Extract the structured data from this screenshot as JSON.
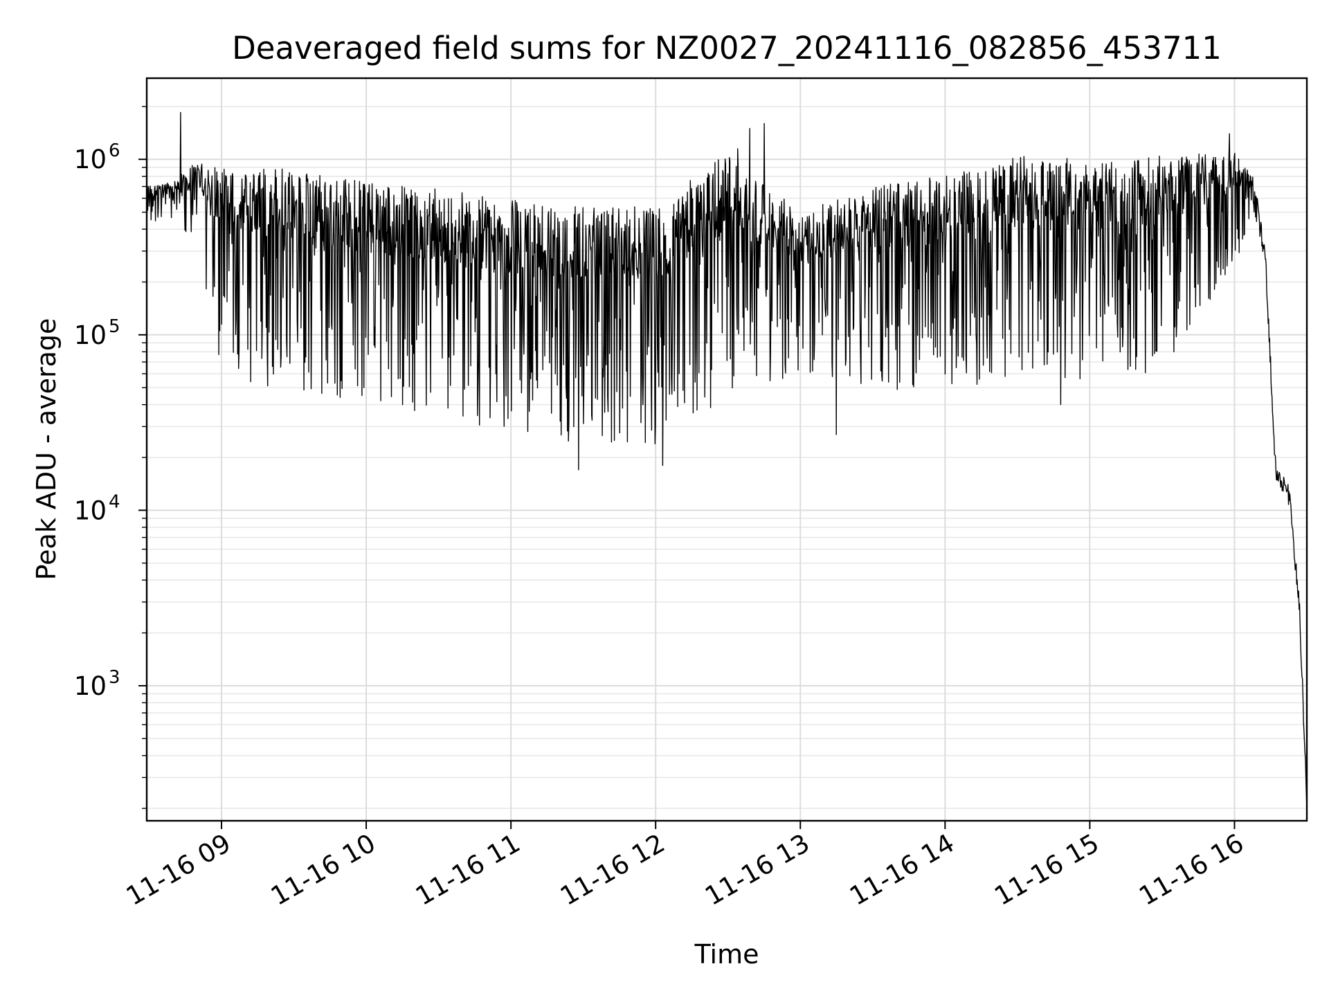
{
  "chart_data": {
    "type": "line",
    "title": "Deaveraged field sums for NZ0027_20241116_082856_453711",
    "xlabel": "Time",
    "ylabel": "Peak ADU - average",
    "yscale": "log",
    "ylim": [
      170,
      2900000
    ],
    "xlim": [
      "2024-11-16T08:29:00",
      "2024-11-16T16:30:00"
    ],
    "grid": "major and minor, light gray",
    "line_color": "#000000",
    "x_ticks": [
      {
        "value": "2024-11-16T09:00:00",
        "label": "11-16 09"
      },
      {
        "value": "2024-11-16T10:00:00",
        "label": "11-16 10"
      },
      {
        "value": "2024-11-16T11:00:00",
        "label": "11-16 11"
      },
      {
        "value": "2024-11-16T12:00:00",
        "label": "11-16 12"
      },
      {
        "value": "2024-11-16T13:00:00",
        "label": "11-16 13"
      },
      {
        "value": "2024-11-16T14:00:00",
        "label": "11-16 14"
      },
      {
        "value": "2024-11-16T15:00:00",
        "label": "11-16 15"
      },
      {
        "value": "2024-11-16T16:00:00",
        "label": "11-16 16"
      }
    ],
    "y_ticks": [
      {
        "value": 1000,
        "base": "10",
        "exp": "3"
      },
      {
        "value": 10000,
        "base": "10",
        "exp": "4"
      },
      {
        "value": 100000,
        "base": "10",
        "exp": "5"
      },
      {
        "value": 1000000,
        "base": "10",
        "exp": "6"
      }
    ],
    "series": [
      {
        "envelope": [
          {
            "time": "2024-11-16T08:29:00",
            "high": 700000,
            "low": 430000
          },
          {
            "time": "2024-11-16T08:40:00",
            "high": 750000,
            "low": 460000
          },
          {
            "time": "2024-11-16T08:50:00",
            "high": 980000,
            "low": 300000
          },
          {
            "time": "2024-11-16T09:00:00",
            "high": 900000,
            "low": 60000
          },
          {
            "time": "2024-11-16T09:30:00",
            "high": 880000,
            "low": 45000
          },
          {
            "time": "2024-11-16T10:00:00",
            "high": 750000,
            "low": 40000
          },
          {
            "time": "2024-11-16T10:30:00",
            "high": 680000,
            "low": 35000
          },
          {
            "time": "2024-11-16T11:00:00",
            "high": 600000,
            "low": 25000
          },
          {
            "time": "2024-11-16T11:30:00",
            "high": 560000,
            "low": 22000
          },
          {
            "time": "2024-11-16T12:00:00",
            "high": 540000,
            "low": 23000
          },
          {
            "time": "2024-11-16T12:30:00",
            "high": 1100000,
            "low": 45000
          },
          {
            "time": "2024-11-16T13:00:00",
            "high": 500000,
            "low": 60000
          },
          {
            "time": "2024-11-16T13:30:00",
            "high": 700000,
            "low": 50000
          },
          {
            "time": "2024-11-16T14:00:00",
            "high": 820000,
            "low": 45000
          },
          {
            "time": "2024-11-16T14:30:00",
            "high": 1050000,
            "low": 55000
          },
          {
            "time": "2024-11-16T15:00:00",
            "high": 1000000,
            "low": 55000
          },
          {
            "time": "2024-11-16T15:30:00",
            "high": 1050000,
            "low": 60000
          },
          {
            "time": "2024-11-16T16:00:00",
            "high": 1100000,
            "low": 250000
          },
          {
            "time": "2024-11-16T16:08:00",
            "high": 800000,
            "low": 450000
          },
          {
            "time": "2024-11-16T16:13:00",
            "high": 300000,
            "low": 200000
          },
          {
            "time": "2024-11-16T16:17:00",
            "high": 20000,
            "low": 12000
          },
          {
            "time": "2024-11-16T16:23:00",
            "high": 14000,
            "low": 9000
          },
          {
            "time": "2024-11-16T16:27:00",
            "high": 3000,
            "low": 2000
          },
          {
            "time": "2024-11-16T16:30:00",
            "high": 250,
            "low": 180
          }
        ],
        "spikes": [
          {
            "time": "2024-11-16T08:43:00",
            "value": 1850000
          },
          {
            "time": "2024-11-16T12:34:00",
            "value": 1150000
          },
          {
            "time": "2024-11-16T12:39:00",
            "value": 1500000
          },
          {
            "time": "2024-11-16T12:45:00",
            "value": 1600000
          },
          {
            "time": "2024-11-16T15:58:00",
            "value": 1400000
          },
          {
            "time": "2024-11-16T11:28:00",
            "value": 17000
          },
          {
            "time": "2024-11-16T12:03:00",
            "value": 18000
          },
          {
            "time": "2024-11-16T12:59:00",
            "value": 63000
          },
          {
            "time": "2024-11-16T13:15:00",
            "value": 27000
          },
          {
            "time": "2024-11-16T14:48:00",
            "value": 40000
          }
        ]
      }
    ]
  }
}
